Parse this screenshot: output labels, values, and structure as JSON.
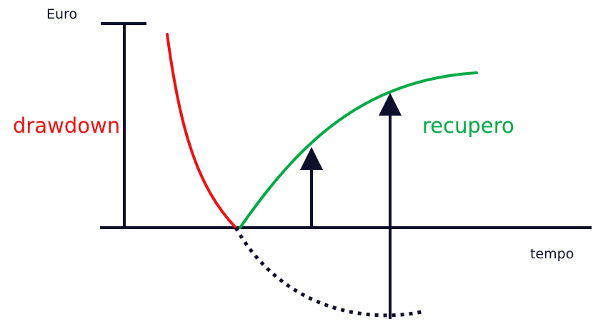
{
  "labels": {
    "y_axis": "Euro",
    "x_axis": "tempo",
    "drawdown": "drawdown",
    "recovery": "recupero"
  },
  "colors": {
    "axis": "#0d0f2b",
    "drawdown": "#ee1111",
    "recovery": "#00aa44",
    "dotted": "#0d0f2b"
  }
}
